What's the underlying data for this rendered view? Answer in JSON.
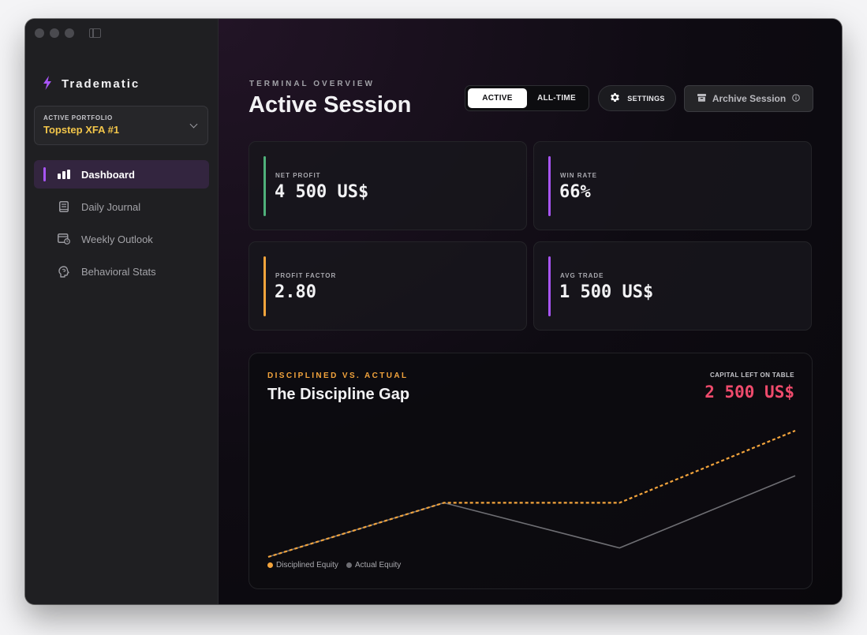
{
  "app": {
    "brand_name": "Tradematiс",
    "brand_icon": "lightning-icon"
  },
  "sidebar": {
    "portfolio_label": "ACTIVE PORTFOLIO",
    "portfolio_value": "Topstep XFA #1",
    "items": [
      {
        "label": "Dashboard",
        "icon": "bar-chart-icon",
        "active": true
      },
      {
        "label": "Daily Journal",
        "icon": "book-icon",
        "active": false
      },
      {
        "label": "Weekly Outlook",
        "icon": "calendar-clock-icon",
        "active": false
      },
      {
        "label": "Behavioral Stats",
        "icon": "brain-icon",
        "active": false
      }
    ]
  },
  "header": {
    "eyebrow": "TERMINAL OVERVIEW",
    "title": "Active Session",
    "toggle": {
      "active_label": "ACTIVE",
      "alltime_label": "ALL-TIME",
      "selected": "ACTIVE"
    },
    "settings_label": "SETTINGS",
    "archive_label": "Archive Session"
  },
  "stats": [
    {
      "label": "NET PROFIT",
      "value": "4 500 US$",
      "accent": "#4fb07a"
    },
    {
      "label": "WIN RATE",
      "value": "66%",
      "accent": "#a855f7"
    },
    {
      "label": "PROFIT FACTOR",
      "value": "2.80",
      "accent": "#f3a43c"
    },
    {
      "label": "AVG TRADE",
      "value": "1 500 US$",
      "accent": "#a855f7"
    }
  ],
  "gap_card": {
    "eyebrow": "DISCIPLINED VS. ACTUAL",
    "title": "The Discipline Gap",
    "capital_label": "CAPITAL LEFT ON TABLE",
    "capital_value": "2 500 US$"
  },
  "chart_data": {
    "type": "line",
    "x": [
      0,
      1,
      2,
      3
    ],
    "ylim": [
      0,
      7000
    ],
    "series": [
      {
        "name": "Disciplined Equity",
        "values": [
          0,
          3000,
          3000,
          7000
        ],
        "color": "#f3a43c",
        "style": "dashed"
      },
      {
        "name": "Actual Equity",
        "values": [
          0,
          3000,
          500,
          4500
        ],
        "color": "#6e6e73",
        "style": "solid"
      }
    ],
    "grid": false,
    "legend": "bottom-left"
  }
}
